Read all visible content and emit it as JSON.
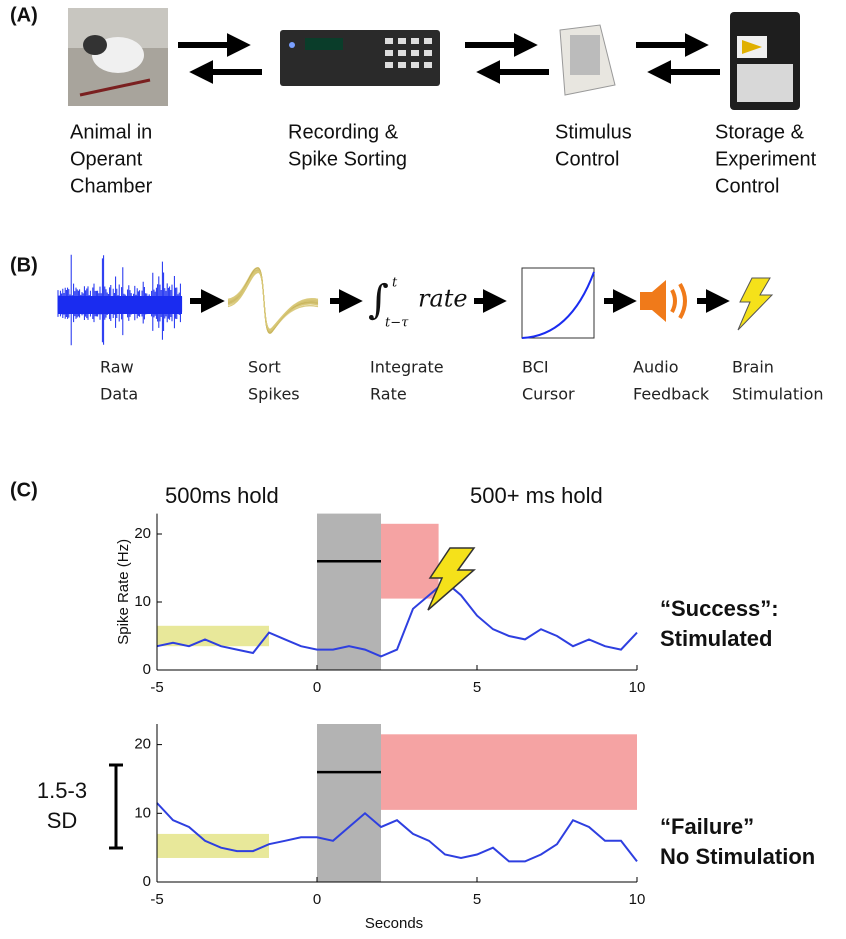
{
  "panel_a": {
    "label": "(A)",
    "stages": [
      [
        "Animal in",
        "Operant",
        "Chamber"
      ],
      [
        "Recording &",
        "Spike Sorting"
      ],
      [
        "Stimulus",
        "Control"
      ],
      [
        "Storage &",
        "Experiment",
        "Control"
      ]
    ]
  },
  "panel_b": {
    "label": "(B)",
    "formula": {
      "integral_upper": "t",
      "integral_lower": "t−τ",
      "integrand": "rate"
    },
    "steps": [
      [
        "Raw",
        "Data"
      ],
      [
        "Sort",
        "Spikes"
      ],
      [
        "Integrate",
        "Rate"
      ],
      [
        "BCI",
        "Cursor"
      ],
      [
        "Audio",
        "Feedback"
      ],
      [
        "Brain",
        "Stimulation"
      ]
    ]
  },
  "panel_c": {
    "label": "(C)",
    "left_header": "500ms hold",
    "right_header": "500+ ms hold",
    "scale_bar": [
      "1.5-3",
      "SD"
    ]
  },
  "chart_data": [
    {
      "type": "line",
      "ylabel": "Spike Rate (Hz)",
      "outcome": [
        "“Success”:",
        "Stimulated"
      ],
      "x": [
        -5,
        -4.5,
        -4,
        -3.5,
        -3,
        -2.5,
        -2,
        -1.5,
        -1,
        -0.5,
        0,
        0.5,
        1,
        1.5,
        2,
        2.5,
        3,
        3.5,
        4,
        4.5,
        5,
        5.5,
        6,
        6.5,
        7,
        7.5,
        8,
        8.5,
        9,
        9.5,
        10
      ],
      "values": [
        3.5,
        4,
        3.5,
        4.5,
        3.5,
        3,
        2.5,
        5.5,
        4.5,
        3.5,
        3,
        3,
        3.5,
        3,
        2,
        3,
        9,
        11,
        13,
        11,
        8,
        6,
        5,
        4.5,
        6,
        5,
        3.5,
        4.5,
        3.5,
        3,
        5.5
      ],
      "color": "#2e3fe0",
      "regions": [
        {
          "x": [
            -5,
            -1.5
          ],
          "y": [
            3.5,
            6.5
          ],
          "color": "#e8e89a"
        },
        {
          "x": [
            0,
            2
          ],
          "y": [
            0,
            23
          ],
          "color": "#b3b3b3"
        },
        {
          "x": [
            2,
            3.8
          ],
          "y": [
            10.5,
            21.5
          ],
          "color": "#f5a3a3"
        }
      ],
      "threshold": {
        "x": [
          0,
          2
        ],
        "y": 16
      },
      "xlim": [
        -5,
        10
      ],
      "xticks": [
        -5,
        0,
        5,
        10
      ],
      "ylim": [
        0,
        23
      ],
      "yticks": [
        0,
        10,
        20
      ]
    },
    {
      "type": "line",
      "xlabel": "Seconds",
      "outcome": [
        "“Failure”",
        "No Stimulation"
      ],
      "x": [
        -5,
        -4.5,
        -4,
        -3.5,
        -3,
        -2.5,
        -2,
        -1.5,
        -1,
        -0.5,
        0,
        0.5,
        1,
        1.5,
        2,
        2.5,
        3,
        3.5,
        4,
        4.5,
        5,
        5.5,
        6,
        6.5,
        7,
        7.5,
        8,
        8.5,
        9,
        9.5,
        10
      ],
      "values": [
        11.5,
        9,
        8,
        6,
        5,
        4.5,
        4.5,
        5.5,
        6,
        6.5,
        6.5,
        6,
        8,
        10,
        8,
        9,
        7,
        6,
        4,
        3.5,
        4,
        5,
        3,
        3,
        4,
        5.5,
        9,
        8,
        6,
        6,
        3
      ],
      "color": "#2e3fe0",
      "regions": [
        {
          "x": [
            -5,
            -1.5
          ],
          "y": [
            3.5,
            7
          ],
          "color": "#e8e89a"
        },
        {
          "x": [
            0,
            2
          ],
          "y": [
            0,
            23
          ],
          "color": "#b3b3b3"
        },
        {
          "x": [
            2,
            10
          ],
          "y": [
            10.5,
            21.5
          ],
          "color": "#f5a3a3"
        }
      ],
      "threshold": {
        "x": [
          0,
          2
        ],
        "y": 16
      },
      "xlim": [
        -5,
        10
      ],
      "xticks": [
        -5,
        0,
        5,
        10
      ],
      "ylim": [
        0,
        23
      ],
      "yticks": [
        0,
        10,
        20
      ]
    }
  ]
}
